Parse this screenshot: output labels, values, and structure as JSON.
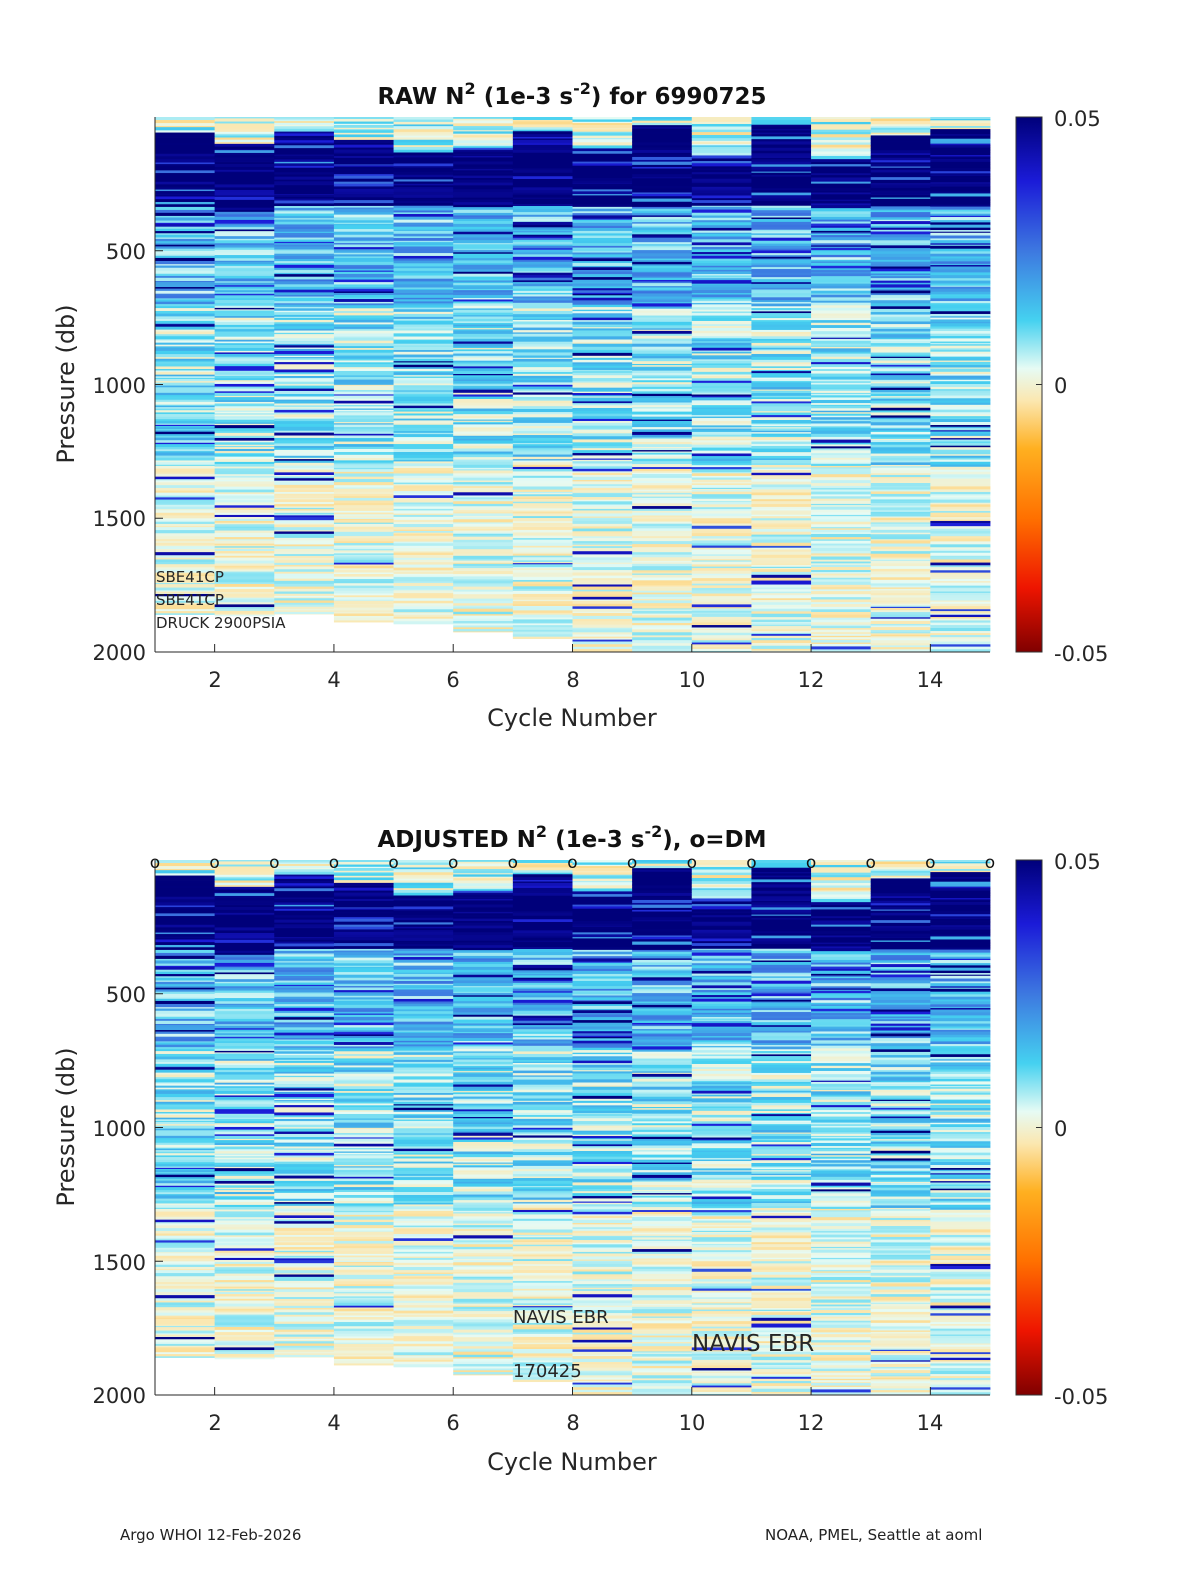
{
  "chart_data": [
    {
      "type": "heatmap",
      "title_main": "RAW N",
      "title_super": "2",
      "title_units": " (1e-3 s",
      "title_units_super": "-2",
      "title_tail": ") for 6990725",
      "xlabel": "Cycle Number",
      "ylabel": "Pressure (db)",
      "xlim": [
        1,
        15
      ],
      "ylim": [
        0,
        2000
      ],
      "xticks": [
        "2",
        "4",
        "6",
        "8",
        "10",
        "12",
        "14"
      ],
      "yticks": [
        "500",
        "1000",
        "1500",
        "2000"
      ],
      "colorbar": {
        "max": "0.05",
        "mid": "0",
        "min": "-0.05",
        "range": [
          -0.05,
          0.05
        ]
      },
      "cycles": [
        1,
        2,
        3,
        4,
        5,
        6,
        7,
        8,
        9,
        10,
        11,
        12,
        13,
        14
      ],
      "max_pressure": [
        1860,
        1865,
        1858,
        1888,
        1895,
        1925,
        1950,
        2000,
        2000,
        2000,
        2000,
        2000,
        2000,
        2000
      ],
      "annotations": [
        "SBE41CP",
        "SBE41CP",
        "DRUCK 2900PSIA"
      ],
      "dm_markers": false
    },
    {
      "type": "heatmap",
      "title_main": "ADJUSTED N",
      "title_super": "2",
      "title_units": " (1e-3 s",
      "title_units_super": "-2",
      "title_tail": "), o=DM",
      "xlabel": "Cycle Number",
      "ylabel": "Pressure (db)",
      "xlim": [
        1,
        15
      ],
      "ylim": [
        0,
        2000
      ],
      "xticks": [
        "2",
        "4",
        "6",
        "8",
        "10",
        "12",
        "14"
      ],
      "yticks": [
        "500",
        "1000",
        "1500",
        "2000"
      ],
      "colorbar": {
        "max": "0.05",
        "mid": "0",
        "min": "-0.05",
        "range": [
          -0.05,
          0.05
        ]
      },
      "cycles": [
        1,
        2,
        3,
        4,
        5,
        6,
        7,
        8,
        9,
        10,
        11,
        12,
        13,
        14
      ],
      "max_pressure": [
        1860,
        1865,
        1858,
        1888,
        1895,
        1925,
        1950,
        2000,
        2000,
        2000,
        2000,
        2000,
        2000,
        2000
      ],
      "annotations": [
        "NAVIS EBR",
        "NAVIS EBR",
        "170425"
      ],
      "dm_markers": true,
      "dm_marker_symbol": "o",
      "dm_marker_cycles": [
        1,
        2,
        3,
        4,
        5,
        6,
        7,
        8,
        9,
        10,
        11,
        12,
        13,
        14,
        15
      ]
    }
  ],
  "footer": {
    "left": "Argo WHOI 12-Feb-2026",
    "right": "NOAA, PMEL, Seattle at aoml"
  }
}
